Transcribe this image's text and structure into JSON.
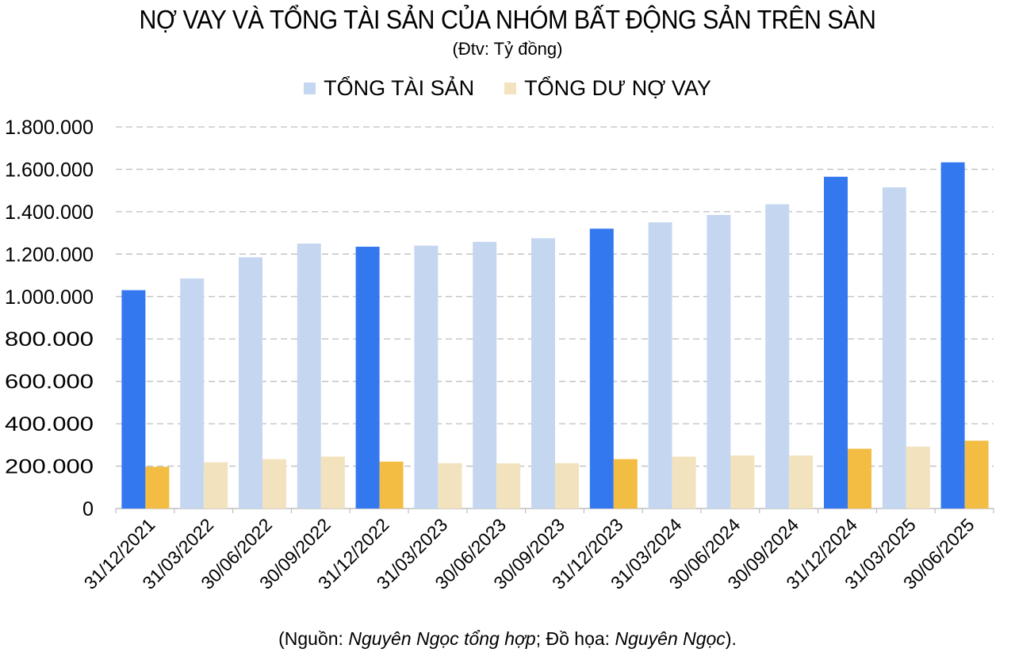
{
  "title": "NỢ VAY VÀ TỔNG TÀI SẢN CỦA NHÓM BẤT ĐỘNG SẢN TRÊN SÀN",
  "subtitle": "(Đtv: Tỷ đồng)",
  "colors": {
    "assets_light": "#c5d7f0",
    "assets_highlight": "#3478f0",
    "debt_light": "#f2e3be",
    "debt_highlight": "#f2bd42",
    "grid": "#bfbfbf"
  },
  "chart_data": {
    "type": "bar",
    "categories": [
      "31/12/2021",
      "31/03/2022",
      "30/06/2022",
      "30/09/2022",
      "31/12/2022",
      "31/03/2023",
      "30/06/2023",
      "30/09/2023",
      "31/12/2023",
      "31/03/2024",
      "30/06/2024",
      "30/09/2024",
      "31/12/2024",
      "31/03/2025",
      "30/06/2025"
    ],
    "series": [
      {
        "name": "TỔNG TÀI SẢN",
        "values": [
          1030000,
          1085000,
          1185000,
          1250000,
          1235000,
          1240000,
          1258000,
          1275000,
          1320000,
          1350000,
          1385000,
          1435000,
          1565000,
          1515000,
          1633000
        ]
      },
      {
        "name": "TỔNG DƯ NỢ VAY",
        "values": [
          197000,
          218000,
          233000,
          245000,
          221000,
          214000,
          213000,
          214000,
          233000,
          245000,
          250000,
          250000,
          282000,
          292000,
          320000
        ]
      }
    ],
    "highlight_categories": [
      "31/12/2021",
      "31/12/2022",
      "31/12/2023",
      "31/12/2024",
      "30/06/2025"
    ],
    "yticks": [
      "0",
      "200.000",
      "400.000",
      "600.000",
      "800.000",
      "1.000.000",
      "1.200.000",
      "1.400.000",
      "1.600.000",
      "1.800.000"
    ],
    "ylim": [
      0,
      1800000
    ],
    "legend_position": "top-center",
    "grid": true
  },
  "source": {
    "prefix": "(Nguồn: ",
    "author": "Nguyên Ngọc tổng hợp",
    "middle": "; Đồ họa: ",
    "designer": "Nguyên Ngọc",
    "suffix": ")."
  }
}
